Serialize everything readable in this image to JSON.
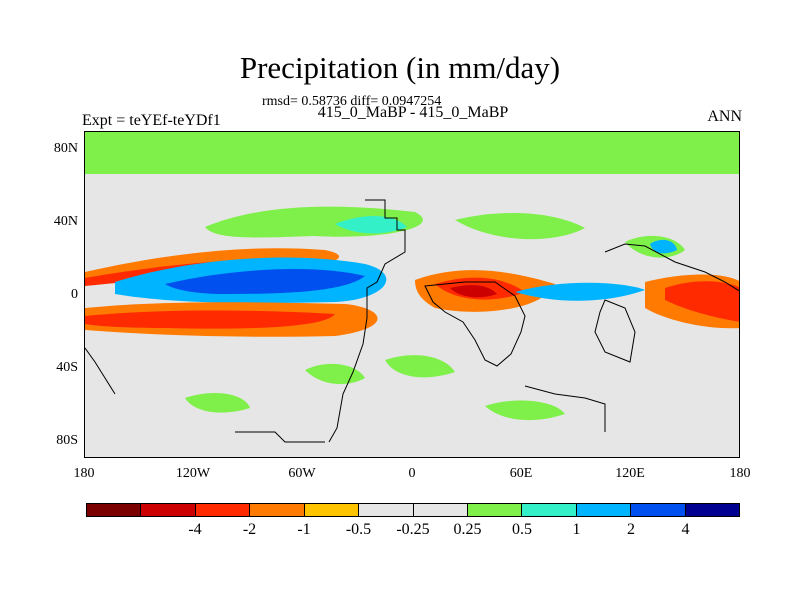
{
  "title": "Precipitation (in mm/day)",
  "stats": "rmsd= 0.58736 diff= 0.0947254",
  "subtitle": "415_0_MaBP - 415_0_MaBP",
  "left_label": "Expt = teYEf-teYDf1",
  "right_label": "ANN",
  "map": {
    "y_ticks": [
      "80N",
      "40N",
      "0",
      "40S",
      "80S"
    ],
    "x_ticks": [
      "180",
      "120W",
      "60W",
      "0",
      "60E",
      "120E",
      "180"
    ],
    "background_color": "#e6e6e6"
  },
  "colorbar": {
    "colors": [
      "#7a0000",
      "#cc0000",
      "#ff2a00",
      "#ff7a00",
      "#ffc400",
      "#e6e6e6",
      "#e6e6e6",
      "#7ff04a",
      "#34f0c8",
      "#00b4ff",
      "#0050f0",
      "#000090"
    ],
    "labels": [
      "-4",
      "-2",
      "-1",
      "-0.5",
      "-0.25",
      "0.25",
      "0.5",
      "1",
      "2",
      "4"
    ]
  },
  "contour_colors": {
    "green": "#7ff04a",
    "cyan": "#34f0c8",
    "lightblue": "#00b4ff",
    "blue": "#0050f0",
    "yellow": "#ffc400",
    "orange": "#ff7a00",
    "red": "#ff2a00",
    "darkred": "#cc0000"
  }
}
